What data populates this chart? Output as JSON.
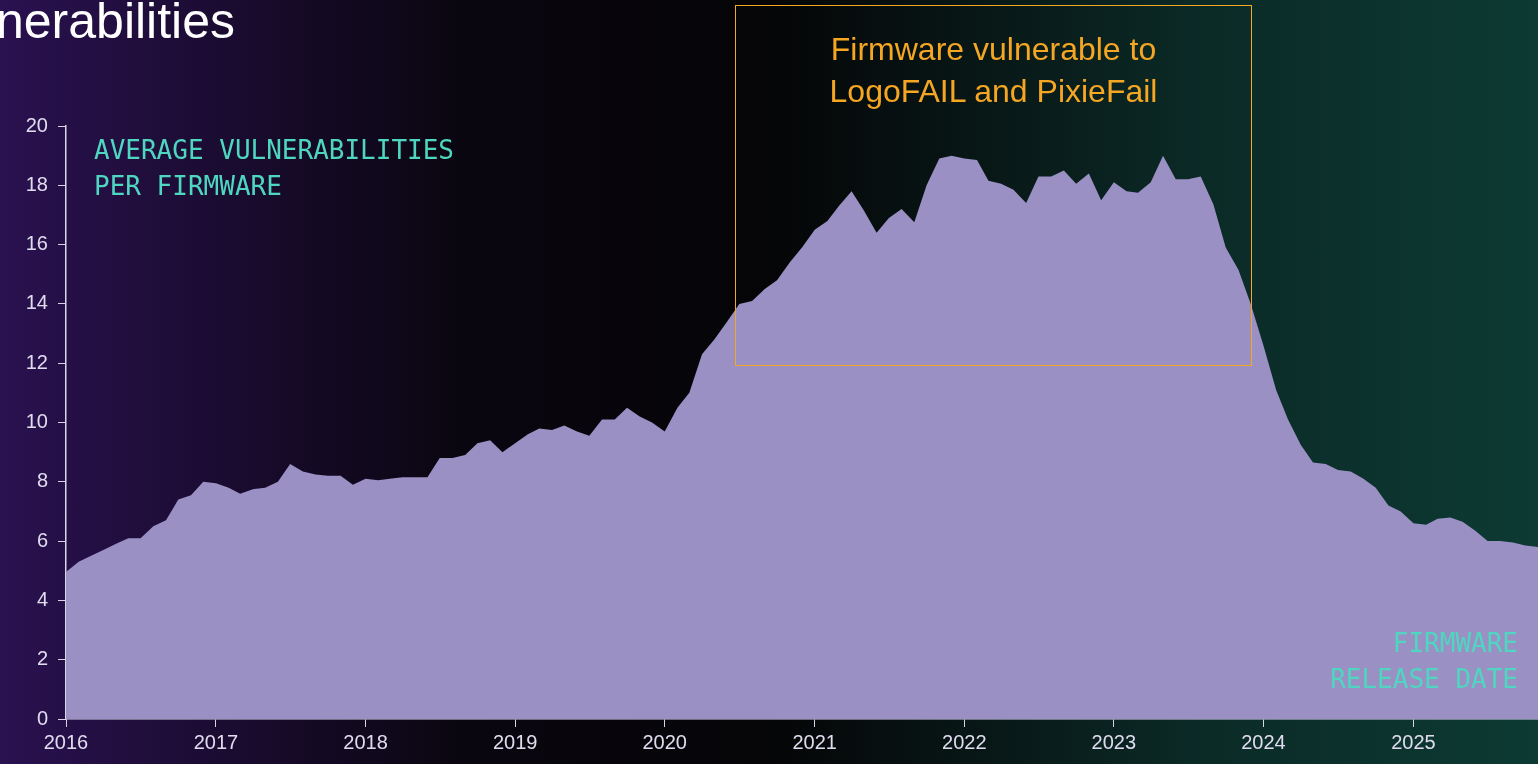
{
  "chart_data": {
    "type": "area",
    "title": "nerabilities",
    "ylabel": "AVERAGE VULNERABILITIES\nPER FIRMWARE",
    "xlabel": "FIRMWARE\nRELEASE DATE",
    "annotations": [
      "Firmware vulnerable to\nLogoFAIL and PixieFail"
    ],
    "x": [
      "2016-01",
      "2016-02",
      "2016-03",
      "2016-04",
      "2016-05",
      "2016-06",
      "2016-07",
      "2016-08",
      "2016-09",
      "2016-10",
      "2016-11",
      "2016-12",
      "2017-01",
      "2017-02",
      "2017-03",
      "2017-04",
      "2017-05",
      "2017-06",
      "2017-07",
      "2017-08",
      "2017-09",
      "2017-10",
      "2017-11",
      "2017-12",
      "2018-01",
      "2018-02",
      "2018-03",
      "2018-04",
      "2018-05",
      "2018-06",
      "2018-07",
      "2018-08",
      "2018-09",
      "2018-10",
      "2018-11",
      "2018-12",
      "2019-01",
      "2019-02",
      "2019-03",
      "2019-04",
      "2019-05",
      "2019-06",
      "2019-07",
      "2019-08",
      "2019-09",
      "2019-10",
      "2019-11",
      "2019-12",
      "2020-01",
      "2020-02",
      "2020-03",
      "2020-04",
      "2020-05",
      "2020-06",
      "2020-07",
      "2020-08",
      "2020-09",
      "2020-10",
      "2020-11",
      "2020-12",
      "2021-01",
      "2021-02",
      "2021-03",
      "2021-04",
      "2021-05",
      "2021-06",
      "2021-07",
      "2021-08",
      "2021-09",
      "2021-10",
      "2021-11",
      "2021-12",
      "2022-01",
      "2022-02",
      "2022-03",
      "2022-04",
      "2022-05",
      "2022-06",
      "2022-07",
      "2022-08",
      "2022-09",
      "2022-10",
      "2022-11",
      "2022-12",
      "2023-01",
      "2023-02",
      "2023-03",
      "2023-04",
      "2023-05",
      "2023-06",
      "2023-07",
      "2023-08",
      "2023-09",
      "2023-10",
      "2023-11",
      "2023-12",
      "2024-01",
      "2024-02",
      "2024-03",
      "2024-04",
      "2024-05",
      "2024-06",
      "2024-07",
      "2024-08",
      "2024-09",
      "2024-10",
      "2024-11",
      "2024-12",
      "2025-01",
      "2025-02",
      "2025-03",
      "2025-04",
      "2025-05",
      "2025-06",
      "2025-07",
      "2025-08",
      "2025-09",
      "2025-10",
      "2025-11"
    ],
    "series": [
      {
        "color": "#9a90c4",
        "values": [
          4.96,
          5.3,
          5.5,
          5.7,
          5.9,
          6.1,
          6.1,
          6.5,
          6.7,
          7.4,
          7.55,
          8.0,
          7.95,
          7.8,
          7.6,
          7.75,
          7.8,
          8.0,
          8.6,
          8.35,
          8.25,
          8.2,
          8.2,
          7.9,
          8.1,
          8.05,
          8.1,
          8.15,
          8.15,
          8.15,
          8.8,
          8.8,
          8.9,
          9.3,
          9.4,
          9.0,
          9.3,
          9.6,
          9.8,
          9.75,
          9.9,
          9.7,
          9.55,
          10.1,
          10.1,
          10.5,
          10.2,
          10.0,
          9.7,
          10.5,
          11.0,
          12.3,
          12.8,
          13.4,
          14.0,
          14.1,
          14.5,
          14.8,
          15.4,
          15.9,
          16.5,
          16.8,
          17.3,
          17.8,
          17.15,
          16.4,
          16.9,
          17.2,
          16.75,
          18.0,
          18.9,
          19.0,
          18.9,
          18.85,
          18.15,
          18.05,
          17.85,
          17.4,
          18.3,
          18.3,
          18.5,
          18.05,
          18.4,
          17.5,
          18.1,
          17.8,
          17.75,
          18.1,
          19.0,
          18.2,
          18.2,
          18.3,
          17.35,
          15.9,
          15.15,
          14.0,
          12.6,
          11.1,
          10.1,
          9.25,
          8.65,
          8.6,
          8.4,
          8.35,
          8.1,
          7.8,
          7.2,
          7.0,
          6.6,
          6.55,
          6.75,
          6.8,
          6.65,
          6.35,
          6.0,
          6.0,
          5.95,
          5.85,
          5.8
        ]
      }
    ],
    "xlim": [
      "2016-01",
      "2025-11"
    ],
    "xticks": [
      {
        "value": "2016",
        "label": "2016"
      },
      {
        "value": "2017",
        "label": "2017"
      },
      {
        "value": "2018",
        "label": "2018"
      },
      {
        "value": "2019",
        "label": "2019"
      },
      {
        "value": "2020",
        "label": "2020"
      },
      {
        "value": "2021",
        "label": "2021"
      },
      {
        "value": "2022",
        "label": "2022"
      },
      {
        "value": "2023",
        "label": "2023"
      },
      {
        "value": "2024",
        "label": "2024"
      },
      {
        "value": "2025",
        "label": "2025"
      }
    ],
    "ylim": [
      0,
      20
    ],
    "yticks": [
      0,
      2,
      4,
      6,
      8,
      10,
      12,
      14,
      16,
      18,
      20
    ],
    "grid": false,
    "legend": false
  }
}
